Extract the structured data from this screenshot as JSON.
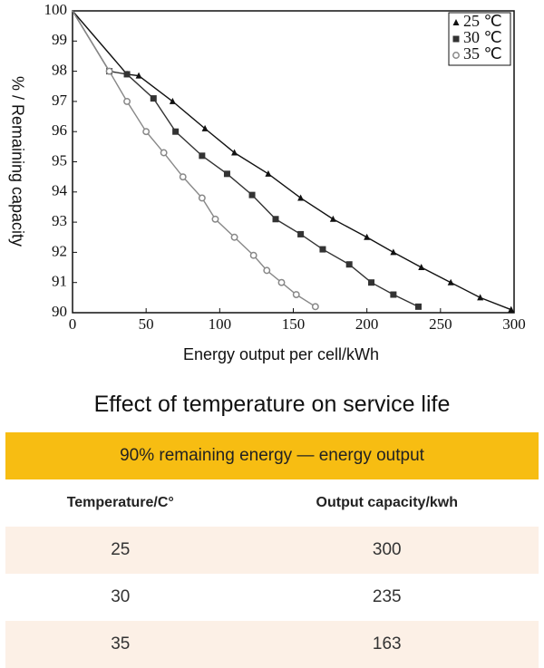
{
  "chart_data": {
    "type": "scatter",
    "xlabel": "Energy output per cell/kWh",
    "ylabel": "% / Remaining capacity",
    "xlim": [
      0,
      300
    ],
    "ylim": [
      90,
      100
    ],
    "xticks": [
      0,
      50,
      100,
      150,
      200,
      250,
      300
    ],
    "yticks": [
      90,
      91,
      92,
      93,
      94,
      95,
      96,
      97,
      98,
      99,
      100
    ],
    "legend": "upper right",
    "series": [
      {
        "name": "25 ℃",
        "color": "#111111",
        "marker": "triangle",
        "x": [
          0,
          37,
          45,
          68,
          90,
          110,
          133,
          155,
          177,
          200,
          218,
          237,
          257,
          277,
          298
        ],
        "values": [
          100,
          97.9,
          97.85,
          97.0,
          96.1,
          95.3,
          94.6,
          93.8,
          93.1,
          92.5,
          92.0,
          91.5,
          91.0,
          90.5,
          90.1
        ]
      },
      {
        "name": "30 ℃",
        "color": "#333333",
        "marker": "square",
        "x": [
          0,
          25,
          37,
          55,
          70,
          88,
          105,
          122,
          138,
          155,
          170,
          188,
          203,
          218,
          235
        ],
        "values": [
          100,
          98.0,
          97.9,
          97.1,
          96.0,
          95.2,
          94.6,
          93.9,
          93.1,
          92.6,
          92.1,
          91.6,
          91.0,
          90.6,
          90.2
        ]
      },
      {
        "name": "35 ℃",
        "color": "#888888",
        "marker": "circle",
        "x": [
          0,
          25,
          37,
          50,
          62,
          75,
          88,
          97,
          110,
          123,
          132,
          142,
          152,
          165
        ],
        "values": [
          100,
          98.0,
          97.0,
          96.0,
          95.3,
          94.5,
          93.8,
          93.1,
          92.5,
          91.9,
          91.4,
          91.0,
          90.6,
          90.2
        ]
      }
    ]
  },
  "heading": "Effect of temperature on service life",
  "table": {
    "caption": "90% remaining energy — energy output",
    "columns": [
      "Temperature/C°",
      "Output capacity/kwh"
    ],
    "rows": [
      [
        25,
        300
      ],
      [
        30,
        235
      ],
      [
        35,
        163
      ]
    ]
  }
}
